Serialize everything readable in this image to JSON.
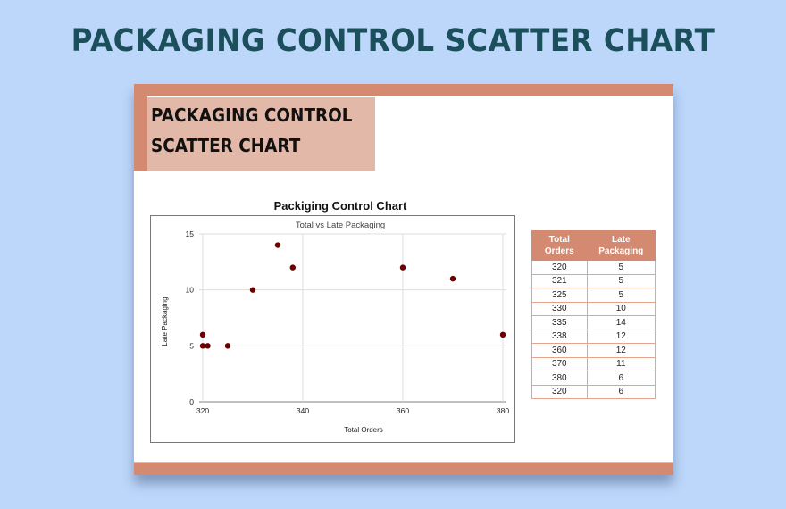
{
  "page": {
    "title": "PACKAGING CONTROL SCATTER CHART",
    "colors": {
      "background": "#BDD7FB",
      "title": "#1B4F5C",
      "accent": "#D48A70",
      "title_box": "#E2B8A8",
      "marker": "#6B0000"
    }
  },
  "card": {
    "title_line1": "PACKAGING CONTROL",
    "title_line2": "SCATTER CHART"
  },
  "chart": {
    "heading": "Packiging Control Chart",
    "subtitle": "Total vs Late Packaging",
    "xlabel": "Total Orders",
    "ylabel": "Late Packaging",
    "x_ticks": [
      "320",
      "340",
      "360",
      "380"
    ],
    "y_ticks": [
      "0",
      "5",
      "10",
      "15"
    ]
  },
  "chart_data": {
    "type": "scatter",
    "title": "Packiging Control Chart",
    "subtitle": "Total vs Late Packaging",
    "xlabel": "Total Orders",
    "ylabel": "Late Packaging",
    "xlim": [
      320,
      380
    ],
    "ylim": [
      0,
      15
    ],
    "x_ticks": [
      320,
      340,
      360,
      380
    ],
    "y_ticks": [
      0,
      5,
      10,
      15
    ],
    "grid": true,
    "legend": null,
    "series": [
      {
        "name": "Late Packaging",
        "color": "#6B0000",
        "x": [
          320,
          321,
          325,
          330,
          335,
          338,
          360,
          370,
          380,
          320
        ],
        "y": [
          5,
          5,
          5,
          10,
          14,
          12,
          12,
          11,
          6,
          6
        ]
      }
    ]
  },
  "table": {
    "headers": [
      "Total Orders",
      "Late Packaging"
    ],
    "rows": [
      [
        "320",
        "5"
      ],
      [
        "321",
        "5"
      ],
      [
        "325",
        "5"
      ],
      [
        "330",
        "10"
      ],
      [
        "335",
        "14"
      ],
      [
        "338",
        "12"
      ],
      [
        "360",
        "12"
      ],
      [
        "370",
        "11"
      ],
      [
        "380",
        "6"
      ],
      [
        "320",
        "6"
      ]
    ]
  }
}
